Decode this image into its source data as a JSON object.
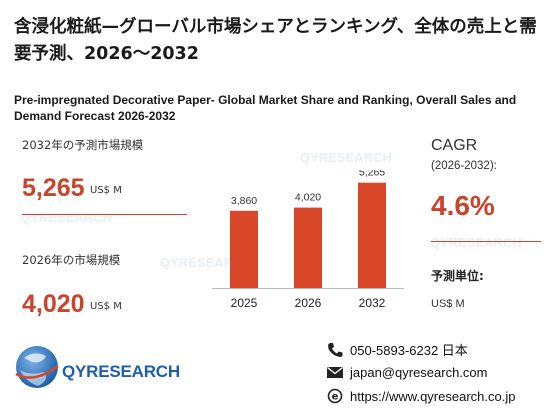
{
  "title_jp": "含浸化粧紙—グローバル市場シェアとランキング、全体の売上と需要予測、2026〜2032",
  "title_en": "Pre-impregnated Decorative Paper- Global Market Share and Ranking, Overall Sales and Demand Forecast 2026-2032",
  "forecast_label": "2032年の予測市場規模",
  "forecast_value": "5,265",
  "forecast_unit": "US$ M",
  "current_label": "2026年の市場規模",
  "current_value": "4,020",
  "current_unit": "US$ M",
  "cagr_title": "CAGR",
  "cagr_years": "(2026-2032):",
  "cagr_value": "4.6%",
  "unit_title": "予測単位:",
  "unit_value": "US$ M",
  "brand": "QYRESEARCH",
  "phone": "050-5893-6232 日本",
  "email": "japan@qyresearch.com",
  "website": "https://www.qyresearch.co.jp",
  "colors": {
    "accent": "#c8442a",
    "bar": "#d9472b",
    "brand_blue": "#1d5fa8"
  },
  "chart_data": {
    "type": "bar",
    "categories": [
      "2025",
      "2026",
      "2032"
    ],
    "values": [
      3860,
      4020,
      5265
    ],
    "value_labels": [
      "3,860",
      "4,020",
      "5,265"
    ],
    "ylim": [
      0,
      5600
    ],
    "title": "",
    "xlabel": "",
    "ylabel": ""
  }
}
